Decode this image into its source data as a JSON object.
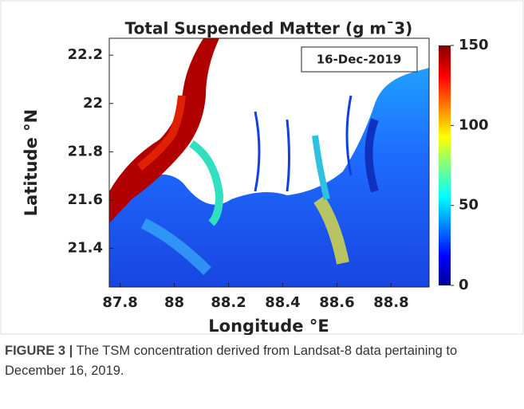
{
  "chart_data": {
    "type": "image-map",
    "title": "Total Suspended Matter (g m¯3)",
    "annotation": "16-Dec-2019",
    "xlabel": "Longitude °E",
    "ylabel": "Latitude °N",
    "xlim": [
      87.76,
      88.94
    ],
    "xticks": [
      87.8,
      88,
      88.2,
      88.4,
      88.6,
      88.8
    ],
    "ylim": [
      21.24,
      22.27
    ],
    "yticks": [
      21.4,
      21.6,
      21.8,
      22,
      22.2
    ],
    "colorbar": {
      "lim": [
        0,
        150
      ],
      "ticks": [
        0,
        50,
        100,
        150
      ]
    }
  },
  "caption": {
    "label": "FIGURE 3 |",
    "text": "The TSM concentration derived from Landsat-8 data pertaining to December 16, 2019."
  }
}
